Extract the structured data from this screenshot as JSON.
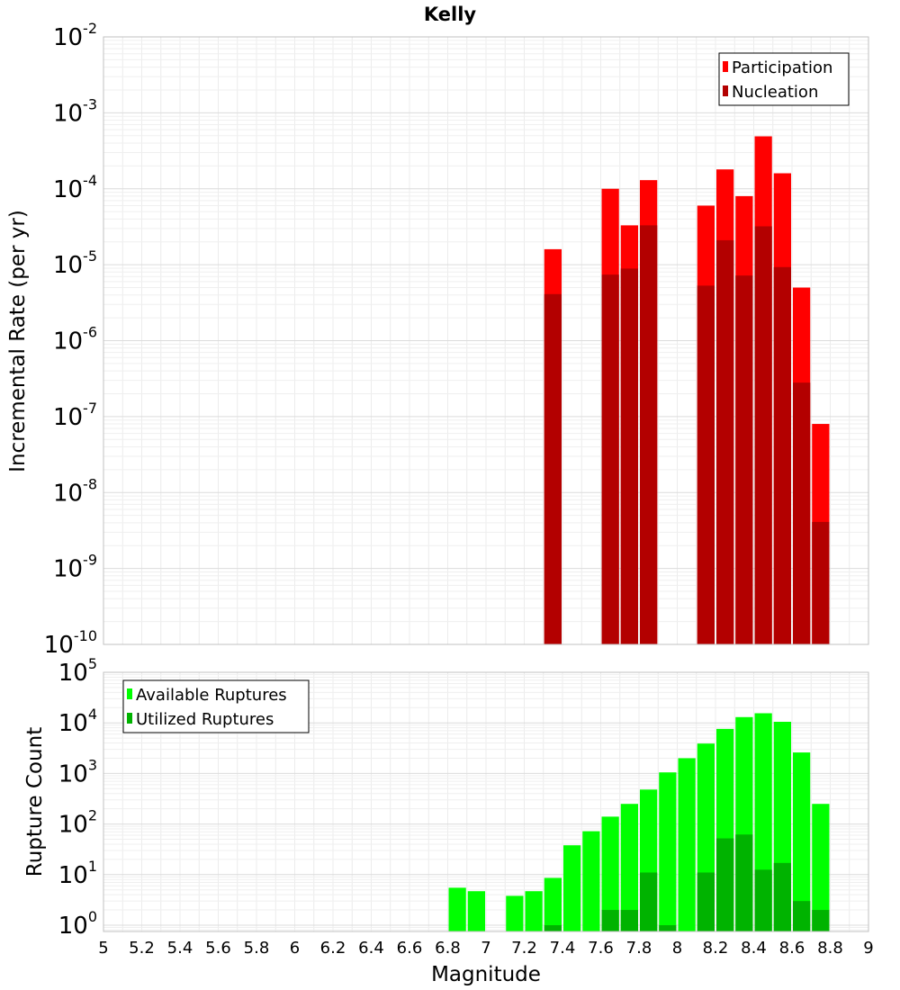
{
  "title": "Kelly",
  "chart_data": [
    {
      "type": "bar",
      "scale": "log",
      "ylabel": "Incremental Rate (per yr)",
      "ylim": [
        1e-10,
        0.01
      ],
      "xlim": [
        5,
        9
      ],
      "y_tick_exponents": [
        -2,
        -3,
        -4,
        -5,
        -6,
        -7,
        -8,
        -9,
        -10
      ],
      "legend_position": "top-right",
      "grid": true,
      "series": [
        {
          "name": "Participation",
          "color": "#ff0000",
          "x": [
            7.35,
            7.65,
            7.75,
            7.85,
            8.15,
            8.25,
            8.35,
            8.45,
            8.55,
            8.65,
            8.75
          ],
          "values": [
            1.6e-05,
            0.0001,
            3.3e-05,
            0.00013,
            6e-05,
            0.00018,
            8e-05,
            0.00049,
            0.00016,
            5e-06,
            8e-08
          ]
        },
        {
          "name": "Nucleation",
          "color": "#b30000",
          "x": [
            7.35,
            7.65,
            7.75,
            7.85,
            8.15,
            8.25,
            8.35,
            8.45,
            8.55,
            8.65,
            8.75
          ],
          "values": [
            4.1e-06,
            7.4e-06,
            8.9e-06,
            3.3e-05,
            5.3e-06,
            2.1e-05,
            7.2e-06,
            3.2e-05,
            9.3e-06,
            2.8e-07,
            4.1e-09
          ]
        }
      ]
    },
    {
      "type": "bar",
      "scale": "log",
      "xlabel": "Magnitude",
      "ylabel": "Rupture Count",
      "ylim": [
        0.75,
        100000.0
      ],
      "xlim": [
        5,
        9
      ],
      "y_tick_exponents": [
        5,
        4,
        3,
        2,
        1,
        0
      ],
      "x_ticks": [
        "5",
        "5.2",
        "5.4",
        "5.6",
        "5.8",
        "6",
        "6.2",
        "6.4",
        "6.6",
        "6.8",
        "7",
        "7.2",
        "7.4",
        "7.6",
        "7.8",
        "8",
        "8.2",
        "8.4",
        "8.6",
        "8.8",
        "9"
      ],
      "legend_position": "top-left",
      "grid": true,
      "series": [
        {
          "name": "Available Ruptures",
          "color": "#00ff00",
          "x": [
            6.85,
            6.95,
            7.15,
            7.25,
            7.35,
            7.45,
            7.55,
            7.65,
            7.75,
            7.85,
            7.95,
            8.05,
            8.15,
            8.25,
            8.35,
            8.45,
            8.55,
            8.65,
            8.75
          ],
          "values": [
            5.5,
            4.7,
            3.8,
            4.7,
            8.6,
            38,
            72,
            140,
            250,
            480,
            1050,
            2000,
            3900,
            7600,
            13000,
            15500,
            10500,
            2600,
            250
          ]
        },
        {
          "name": "Utilized Ruptures",
          "color": "#00b300",
          "x": [
            7.35,
            7.65,
            7.75,
            7.85,
            7.95,
            8.15,
            8.25,
            8.35,
            8.45,
            8.55,
            8.65,
            8.75
          ],
          "values": [
            1,
            2,
            2,
            11,
            1,
            11,
            52,
            62,
            12.5,
            17,
            3,
            2
          ]
        }
      ]
    }
  ]
}
